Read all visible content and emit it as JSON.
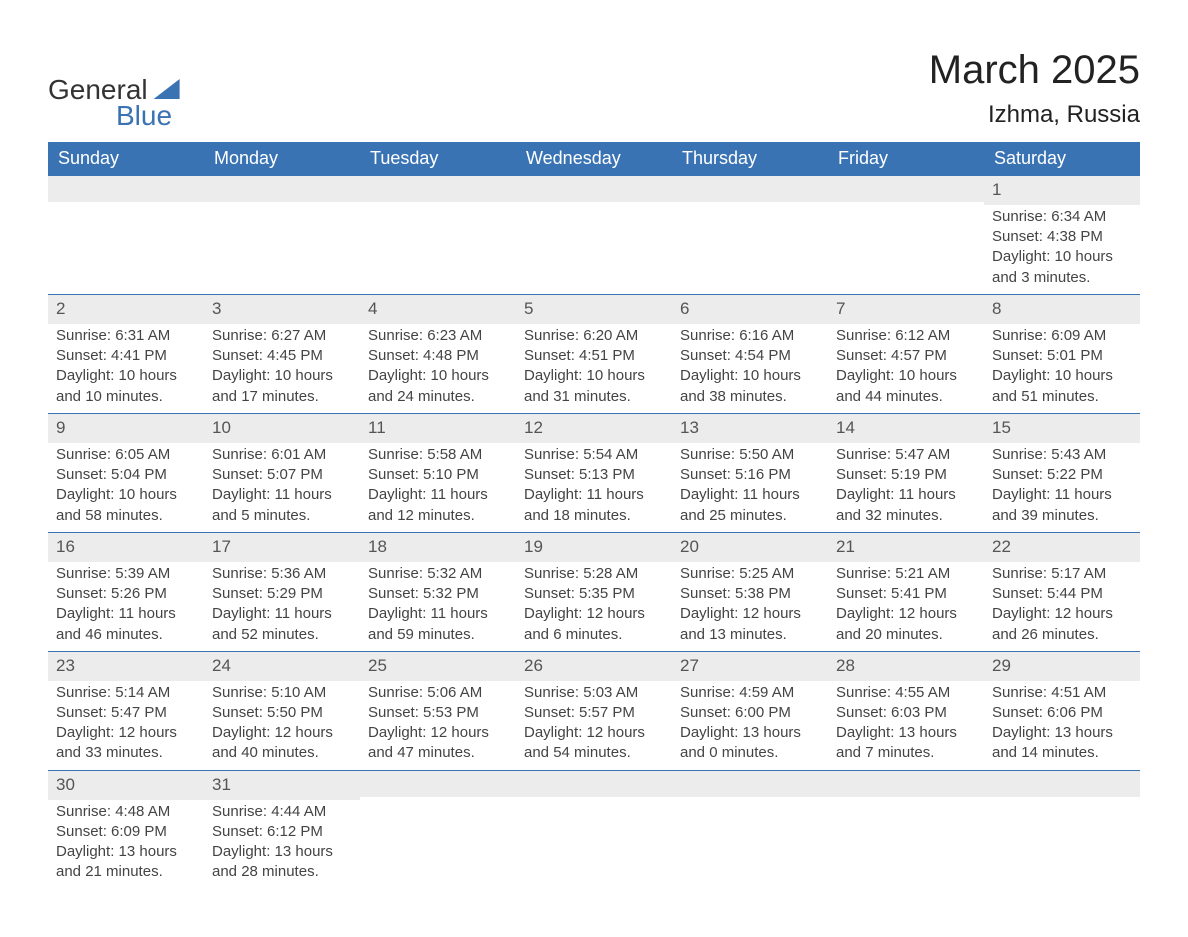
{
  "logo": {
    "text1": "General",
    "text2": "Blue"
  },
  "header": {
    "month_title": "March 2025",
    "location": "Izhma, Russia"
  },
  "day_labels": [
    "Sunday",
    "Monday",
    "Tuesday",
    "Wednesday",
    "Thursday",
    "Friday",
    "Saturday"
  ],
  "colors": {
    "header_bg": "#3a73b4",
    "header_text": "#ffffff",
    "band_bg": "#ececec",
    "row_border": "#3a73b4",
    "text": "#444444",
    "logo_blue": "#3a73b4"
  },
  "weeks": [
    [
      {
        "day": "",
        "sunrise": "",
        "sunset": "",
        "daylight1": "",
        "daylight2": ""
      },
      {
        "day": "",
        "sunrise": "",
        "sunset": "",
        "daylight1": "",
        "daylight2": ""
      },
      {
        "day": "",
        "sunrise": "",
        "sunset": "",
        "daylight1": "",
        "daylight2": ""
      },
      {
        "day": "",
        "sunrise": "",
        "sunset": "",
        "daylight1": "",
        "daylight2": ""
      },
      {
        "day": "",
        "sunrise": "",
        "sunset": "",
        "daylight1": "",
        "daylight2": ""
      },
      {
        "day": "",
        "sunrise": "",
        "sunset": "",
        "daylight1": "",
        "daylight2": ""
      },
      {
        "day": "1",
        "sunrise": "Sunrise: 6:34 AM",
        "sunset": "Sunset: 4:38 PM",
        "daylight1": "Daylight: 10 hours",
        "daylight2": "and 3 minutes."
      }
    ],
    [
      {
        "day": "2",
        "sunrise": "Sunrise: 6:31 AM",
        "sunset": "Sunset: 4:41 PM",
        "daylight1": "Daylight: 10 hours",
        "daylight2": "and 10 minutes."
      },
      {
        "day": "3",
        "sunrise": "Sunrise: 6:27 AM",
        "sunset": "Sunset: 4:45 PM",
        "daylight1": "Daylight: 10 hours",
        "daylight2": "and 17 minutes."
      },
      {
        "day": "4",
        "sunrise": "Sunrise: 6:23 AM",
        "sunset": "Sunset: 4:48 PM",
        "daylight1": "Daylight: 10 hours",
        "daylight2": "and 24 minutes."
      },
      {
        "day": "5",
        "sunrise": "Sunrise: 6:20 AM",
        "sunset": "Sunset: 4:51 PM",
        "daylight1": "Daylight: 10 hours",
        "daylight2": "and 31 minutes."
      },
      {
        "day": "6",
        "sunrise": "Sunrise: 6:16 AM",
        "sunset": "Sunset: 4:54 PM",
        "daylight1": "Daylight: 10 hours",
        "daylight2": "and 38 minutes."
      },
      {
        "day": "7",
        "sunrise": "Sunrise: 6:12 AM",
        "sunset": "Sunset: 4:57 PM",
        "daylight1": "Daylight: 10 hours",
        "daylight2": "and 44 minutes."
      },
      {
        "day": "8",
        "sunrise": "Sunrise: 6:09 AM",
        "sunset": "Sunset: 5:01 PM",
        "daylight1": "Daylight: 10 hours",
        "daylight2": "and 51 minutes."
      }
    ],
    [
      {
        "day": "9",
        "sunrise": "Sunrise: 6:05 AM",
        "sunset": "Sunset: 5:04 PM",
        "daylight1": "Daylight: 10 hours",
        "daylight2": "and 58 minutes."
      },
      {
        "day": "10",
        "sunrise": "Sunrise: 6:01 AM",
        "sunset": "Sunset: 5:07 PM",
        "daylight1": "Daylight: 11 hours",
        "daylight2": "and 5 minutes."
      },
      {
        "day": "11",
        "sunrise": "Sunrise: 5:58 AM",
        "sunset": "Sunset: 5:10 PM",
        "daylight1": "Daylight: 11 hours",
        "daylight2": "and 12 minutes."
      },
      {
        "day": "12",
        "sunrise": "Sunrise: 5:54 AM",
        "sunset": "Sunset: 5:13 PM",
        "daylight1": "Daylight: 11 hours",
        "daylight2": "and 18 minutes."
      },
      {
        "day": "13",
        "sunrise": "Sunrise: 5:50 AM",
        "sunset": "Sunset: 5:16 PM",
        "daylight1": "Daylight: 11 hours",
        "daylight2": "and 25 minutes."
      },
      {
        "day": "14",
        "sunrise": "Sunrise: 5:47 AM",
        "sunset": "Sunset: 5:19 PM",
        "daylight1": "Daylight: 11 hours",
        "daylight2": "and 32 minutes."
      },
      {
        "day": "15",
        "sunrise": "Sunrise: 5:43 AM",
        "sunset": "Sunset: 5:22 PM",
        "daylight1": "Daylight: 11 hours",
        "daylight2": "and 39 minutes."
      }
    ],
    [
      {
        "day": "16",
        "sunrise": "Sunrise: 5:39 AM",
        "sunset": "Sunset: 5:26 PM",
        "daylight1": "Daylight: 11 hours",
        "daylight2": "and 46 minutes."
      },
      {
        "day": "17",
        "sunrise": "Sunrise: 5:36 AM",
        "sunset": "Sunset: 5:29 PM",
        "daylight1": "Daylight: 11 hours",
        "daylight2": "and 52 minutes."
      },
      {
        "day": "18",
        "sunrise": "Sunrise: 5:32 AM",
        "sunset": "Sunset: 5:32 PM",
        "daylight1": "Daylight: 11 hours",
        "daylight2": "and 59 minutes."
      },
      {
        "day": "19",
        "sunrise": "Sunrise: 5:28 AM",
        "sunset": "Sunset: 5:35 PM",
        "daylight1": "Daylight: 12 hours",
        "daylight2": "and 6 minutes."
      },
      {
        "day": "20",
        "sunrise": "Sunrise: 5:25 AM",
        "sunset": "Sunset: 5:38 PM",
        "daylight1": "Daylight: 12 hours",
        "daylight2": "and 13 minutes."
      },
      {
        "day": "21",
        "sunrise": "Sunrise: 5:21 AM",
        "sunset": "Sunset: 5:41 PM",
        "daylight1": "Daylight: 12 hours",
        "daylight2": "and 20 minutes."
      },
      {
        "day": "22",
        "sunrise": "Sunrise: 5:17 AM",
        "sunset": "Sunset: 5:44 PM",
        "daylight1": "Daylight: 12 hours",
        "daylight2": "and 26 minutes."
      }
    ],
    [
      {
        "day": "23",
        "sunrise": "Sunrise: 5:14 AM",
        "sunset": "Sunset: 5:47 PM",
        "daylight1": "Daylight: 12 hours",
        "daylight2": "and 33 minutes."
      },
      {
        "day": "24",
        "sunrise": "Sunrise: 5:10 AM",
        "sunset": "Sunset: 5:50 PM",
        "daylight1": "Daylight: 12 hours",
        "daylight2": "and 40 minutes."
      },
      {
        "day": "25",
        "sunrise": "Sunrise: 5:06 AM",
        "sunset": "Sunset: 5:53 PM",
        "daylight1": "Daylight: 12 hours",
        "daylight2": "and 47 minutes."
      },
      {
        "day": "26",
        "sunrise": "Sunrise: 5:03 AM",
        "sunset": "Sunset: 5:57 PM",
        "daylight1": "Daylight: 12 hours",
        "daylight2": "and 54 minutes."
      },
      {
        "day": "27",
        "sunrise": "Sunrise: 4:59 AM",
        "sunset": "Sunset: 6:00 PM",
        "daylight1": "Daylight: 13 hours",
        "daylight2": "and 0 minutes."
      },
      {
        "day": "28",
        "sunrise": "Sunrise: 4:55 AM",
        "sunset": "Sunset: 6:03 PM",
        "daylight1": "Daylight: 13 hours",
        "daylight2": "and 7 minutes."
      },
      {
        "day": "29",
        "sunrise": "Sunrise: 4:51 AM",
        "sunset": "Sunset: 6:06 PM",
        "daylight1": "Daylight: 13 hours",
        "daylight2": "and 14 minutes."
      }
    ],
    [
      {
        "day": "30",
        "sunrise": "Sunrise: 4:48 AM",
        "sunset": "Sunset: 6:09 PM",
        "daylight1": "Daylight: 13 hours",
        "daylight2": "and 21 minutes."
      },
      {
        "day": "31",
        "sunrise": "Sunrise: 4:44 AM",
        "sunset": "Sunset: 6:12 PM",
        "daylight1": "Daylight: 13 hours",
        "daylight2": "and 28 minutes."
      },
      {
        "day": "",
        "sunrise": "",
        "sunset": "",
        "daylight1": "",
        "daylight2": ""
      },
      {
        "day": "",
        "sunrise": "",
        "sunset": "",
        "daylight1": "",
        "daylight2": ""
      },
      {
        "day": "",
        "sunrise": "",
        "sunset": "",
        "daylight1": "",
        "daylight2": ""
      },
      {
        "day": "",
        "sunrise": "",
        "sunset": "",
        "daylight1": "",
        "daylight2": ""
      },
      {
        "day": "",
        "sunrise": "",
        "sunset": "",
        "daylight1": "",
        "daylight2": ""
      }
    ]
  ]
}
